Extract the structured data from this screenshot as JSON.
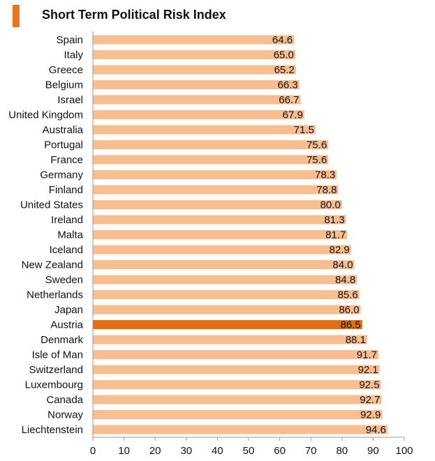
{
  "colors": {
    "accent": "#E8761E",
    "bar": "#F8BE90",
    "highlight": "#E07012",
    "axis": "#999999"
  },
  "chart_data": {
    "type": "bar",
    "orientation": "horizontal",
    "title": "Short Term Political Risk Index",
    "categories": [
      "Spain",
      "Italy",
      "Greece",
      "Belgium",
      "Israel",
      "United Kingdom",
      "Australia",
      "Portugal",
      "France",
      "Germany",
      "Finland",
      "United States",
      "Ireland",
      "Malta",
      "Iceland",
      "New Zealand",
      "Sweden",
      "Netherlands",
      "Japan",
      "Austria",
      "Denmark",
      "Isle of Man",
      "Switzerland",
      "Luxembourg",
      "Canada",
      "Norway",
      "Liechtenstein"
    ],
    "values": [
      64.6,
      65.0,
      65.2,
      66.3,
      66.7,
      67.9,
      71.5,
      75.6,
      75.6,
      78.3,
      78.8,
      80.0,
      81.3,
      81.7,
      82.9,
      84.0,
      84.8,
      85.6,
      86.0,
      86.5,
      88.1,
      91.7,
      92.1,
      92.5,
      92.7,
      92.9,
      94.6
    ],
    "value_labels": [
      "64.6",
      "65.0",
      "65.2",
      "66.3",
      "66.7",
      "67.9",
      "71.5",
      "75.6",
      "75.6",
      "78.3",
      "78.8",
      "80.0",
      "81.3",
      "81.7",
      "82.9",
      "84.0",
      "84.8",
      "85.6",
      "86.0",
      "86.5",
      "88.1",
      "91.7",
      "92.1",
      "92.5",
      "92.7",
      "92.9",
      "94.6"
    ],
    "highlight_category": "Austria",
    "xlim": [
      0,
      100
    ],
    "xticks": [
      0,
      10,
      20,
      30,
      40,
      50,
      60,
      70,
      80,
      90,
      100
    ],
    "xlabel": "",
    "ylabel": "",
    "grid": false,
    "legend": "none"
  }
}
